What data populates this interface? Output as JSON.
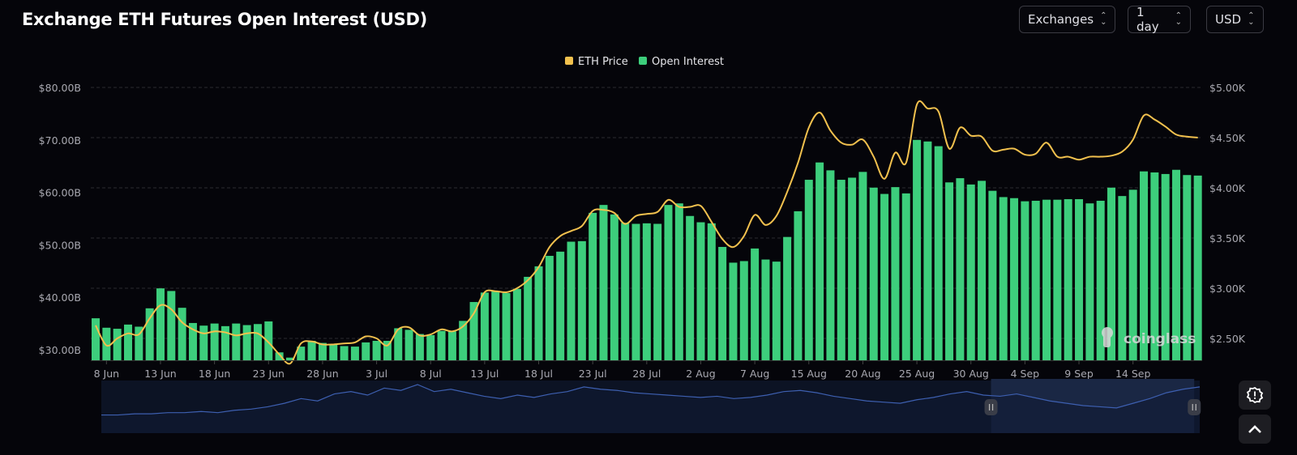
{
  "header": {
    "title": "Exchange ETH Futures Open Interest (USD)"
  },
  "controls": [
    {
      "label": "Exchanges",
      "icon": "chevron-up-down-icon"
    },
    {
      "label": "1 day",
      "icon": "chevron-up-down-icon"
    },
    {
      "label": "USD",
      "icon": "chevron-up-down-icon"
    }
  ],
  "side_buttons": [
    {
      "icon": "alert-badge-icon"
    },
    {
      "icon": "chevron-up-icon"
    }
  ],
  "watermark": "coinglass",
  "colors": {
    "bar": "#3dce7c",
    "line": "#f2c14e",
    "grid": "#2a2a30",
    "navigator_line": "#3d5fb0",
    "navigator_fill": "#0c1324",
    "navigator_selected": "#1a2744"
  },
  "chart_data": {
    "type": "bar+line",
    "title": "Exchange ETH Futures Open Interest (USD)",
    "legend": {
      "position": "top-center",
      "entries": [
        "ETH Price",
        "Open Interest"
      ]
    },
    "grid": true,
    "y_left": {
      "ticks": [
        "$30.00B",
        "$40.00B",
        "$50.00B",
        "$60.00B",
        "$70.00B",
        "$80.00B"
      ],
      "tick_values": [
        30,
        40,
        50,
        60,
        70,
        80
      ],
      "range": [
        28,
        80
      ],
      "unit": "B USD"
    },
    "y_right": {
      "ticks": [
        "$2.50K",
        "$3.00K",
        "$3.50K",
        "$4.00K",
        "$4.50K",
        "$5.00K"
      ],
      "tick_values": [
        2500,
        3000,
        3500,
        4000,
        4500,
        5000
      ],
      "range": [
        2250,
        5000
      ],
      "unit": "USD"
    },
    "x_ticks": [
      "8 Jun",
      "13 Jun",
      "18 Jun",
      "23 Jun",
      "28 Jun",
      "3 Jul",
      "8 Jul",
      "13 Jul",
      "18 Jul",
      "23 Jul",
      "28 Jul",
      "2 Aug",
      "7 Aug",
      "15 Aug",
      "20 Aug",
      "25 Aug",
      "30 Aug",
      "4 Sep",
      "9 Sep",
      "14 Sep"
    ],
    "categories": [
      "7 Jun",
      "8 Jun",
      "9 Jun",
      "10 Jun",
      "11 Jun",
      "12 Jun",
      "13 Jun",
      "14 Jun",
      "15 Jun",
      "16 Jun",
      "17 Jun",
      "18 Jun",
      "19 Jun",
      "20 Jun",
      "21 Jun",
      "22 Jun",
      "23 Jun",
      "24 Jun",
      "25 Jun",
      "26 Jun",
      "27 Jun",
      "28 Jun",
      "29 Jun",
      "30 Jun",
      "1 Jul",
      "2 Jul",
      "3 Jul",
      "4 Jul",
      "5 Jul",
      "6 Jul",
      "7 Jul",
      "8 Jul",
      "9 Jul",
      "10 Jul",
      "11 Jul",
      "12 Jul",
      "13 Jul",
      "14 Jul",
      "15 Jul",
      "16 Jul",
      "17 Jul",
      "18 Jul",
      "19 Jul",
      "20 Jul",
      "21 Jul",
      "22 Jul",
      "23 Jul",
      "24 Jul",
      "25 Jul",
      "26 Jul",
      "27 Jul",
      "28 Jul",
      "29 Jul",
      "30 Jul",
      "31 Jul",
      "1 Aug",
      "2 Aug",
      "3 Aug",
      "4 Aug",
      "5 Aug",
      "6 Aug",
      "7 Aug",
      "8 Aug",
      "9 Aug",
      "10 Aug",
      "11 Aug",
      "15 Aug",
      "16 Aug",
      "17 Aug",
      "18 Aug",
      "19 Aug",
      "20 Aug",
      "21 Aug",
      "22 Aug",
      "23 Aug",
      "24 Aug",
      "25 Aug",
      "26 Aug",
      "27 Aug",
      "28 Aug",
      "29 Aug",
      "30 Aug",
      "31 Aug",
      "1 Sep",
      "2 Sep",
      "3 Sep",
      "4 Sep",
      "5 Sep",
      "6 Sep",
      "7 Sep",
      "8 Sep",
      "9 Sep",
      "10 Sep",
      "11 Sep",
      "12 Sep",
      "13 Sep",
      "14 Sep",
      "15 Sep",
      "16 Sep",
      "17 Sep",
      "18 Sep",
      "19 Sep",
      "20 Sep"
    ],
    "series": [
      {
        "name": "Open Interest",
        "type": "bar",
        "axis": "left",
        "values": [
          36.0,
          34.2,
          34.0,
          34.8,
          34.4,
          37.9,
          41.7,
          41.2,
          38.0,
          35.1,
          34.6,
          35.0,
          34.5,
          35.0,
          34.7,
          34.9,
          35.4,
          29.5,
          28.5,
          30.6,
          31.7,
          31.3,
          31.0,
          30.7,
          30.6,
          31.4,
          31.7,
          31.7,
          34.1,
          33.8,
          33.0,
          32.8,
          33.6,
          33.5,
          35.5,
          39.1,
          40.9,
          41.2,
          40.8,
          41.6,
          43.9,
          45.9,
          47.9,
          48.7,
          50.6,
          50.7,
          56.1,
          57.6,
          55.8,
          54.2,
          54.0,
          54.1,
          54.0,
          57.6,
          57.9,
          55.5,
          54.3,
          54.1,
          49.6,
          46.6,
          46.9,
          49.3,
          47.2,
          46.8,
          51.5,
          56.4,
          62.4,
          65.7,
          64.2,
          62.4,
          62.8,
          63.9,
          60.9,
          59.7,
          61.0,
          59.8,
          70.0,
          69.7,
          68.8,
          61.9,
          62.7,
          61.5,
          62.2,
          60.3,
          59.1,
          58.9,
          58.3,
          58.4,
          58.6,
          58.6,
          58.7,
          58.7,
          57.9,
          58.4,
          60.9,
          59.3,
          60.5,
          64.0,
          63.8,
          63.5,
          64.3,
          63.3,
          63.2
        ]
      },
      {
        "name": "ETH Price",
        "type": "line",
        "axis": "right",
        "values": [
          2630,
          2430,
          2500,
          2550,
          2540,
          2700,
          2830,
          2790,
          2660,
          2590,
          2550,
          2570,
          2560,
          2530,
          2550,
          2550,
          2460,
          2340,
          2250,
          2450,
          2470,
          2440,
          2440,
          2450,
          2460,
          2520,
          2500,
          2430,
          2590,
          2610,
          2530,
          2540,
          2590,
          2570,
          2620,
          2750,
          2960,
          2970,
          2960,
          3000,
          3080,
          3210,
          3410,
          3520,
          3570,
          3620,
          3770,
          3780,
          3750,
          3640,
          3720,
          3740,
          3760,
          3880,
          3810,
          3810,
          3820,
          3660,
          3490,
          3410,
          3520,
          3730,
          3630,
          3720,
          3960,
          4250,
          4600,
          4750,
          4570,
          4450,
          4430,
          4480,
          4310,
          4090,
          4350,
          4250,
          4830,
          4790,
          4760,
          4390,
          4600,
          4520,
          4510,
          4370,
          4380,
          4390,
          4330,
          4340,
          4450,
          4310,
          4310,
          4280,
          4310,
          4310,
          4320,
          4360,
          4480,
          4720,
          4680,
          4610,
          4530,
          4510,
          4500
        ]
      }
    ],
    "navigator": {
      "series": [
        10,
        10,
        11,
        11,
        12,
        12,
        13,
        12,
        14,
        15,
        17,
        20,
        24,
        22,
        28,
        30,
        27,
        33,
        31,
        36,
        30,
        32,
        29,
        26,
        24,
        27,
        25,
        28,
        30,
        34,
        32,
        31,
        29,
        28,
        27,
        26,
        25,
        26,
        24,
        25,
        27,
        30,
        31,
        29,
        26,
        24,
        22,
        21,
        20,
        23,
        25,
        28,
        30,
        27,
        26,
        28,
        25,
        22,
        20,
        18,
        17,
        16,
        20,
        24,
        29,
        32,
        34
      ],
      "selected_range": [
        0.81,
        0.995
      ]
    }
  }
}
